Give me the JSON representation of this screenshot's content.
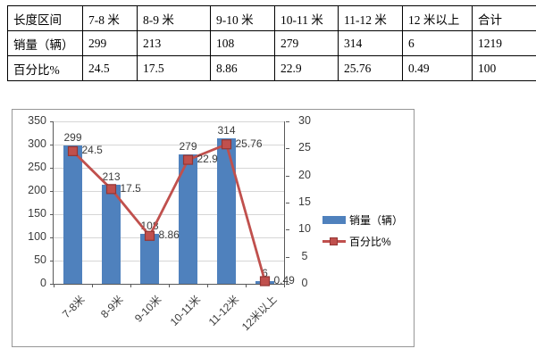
{
  "table": {
    "header_column": [
      "长度区间",
      "销量（辆）",
      "百分比%"
    ],
    "rows": [
      [
        "7-8 米",
        "8-9 米",
        "9-10 米",
        "10-11 米",
        "11-12 米",
        "12 米以上",
        "合计"
      ],
      [
        "299",
        "213",
        "108",
        "279",
        "314",
        "6",
        "1219"
      ],
      [
        "24.5",
        "17.5",
        "8.86",
        "22.9",
        "25.76",
        "0.49",
        "100"
      ]
    ]
  },
  "chart_data": {
    "type": "bar",
    "subtype": "combo-bar-line-dual-axis",
    "categories": [
      "7-8米",
      "8-9米",
      "9-10米",
      "10-11米",
      "11-12米",
      "12米以上"
    ],
    "series": [
      {
        "name": "销量（辆）",
        "type": "bar",
        "axis": "left",
        "color": "#4F81BD",
        "values": [
          299,
          213,
          108,
          279,
          314,
          6
        ],
        "labels": [
          "299",
          "213",
          "108",
          "279",
          "314",
          "6"
        ]
      },
      {
        "name": "百分比%",
        "type": "line",
        "axis": "right",
        "color": "#C0504D",
        "marker": "square",
        "values": [
          24.5,
          17.5,
          8.86,
          22.9,
          25.76,
          0.49
        ],
        "labels": [
          "24.5",
          "17.5",
          "8.86",
          "22.9",
          "25.76",
          "0.49"
        ]
      }
    ],
    "left_axis": {
      "min": 0,
      "max": 350,
      "step": 50
    },
    "right_axis": {
      "min": 0,
      "max": 30,
      "step": 5
    },
    "legend_position": "right",
    "grid": true,
    "title": "",
    "xlabel": "",
    "ylabel": ""
  },
  "colors": {
    "bar": "#4F81BD",
    "line": "#C0504D",
    "marker_border": "#943634",
    "grid": "#d6d6d6",
    "axis": "#595959",
    "chart_border": "#979797",
    "table_border": "#000000"
  }
}
